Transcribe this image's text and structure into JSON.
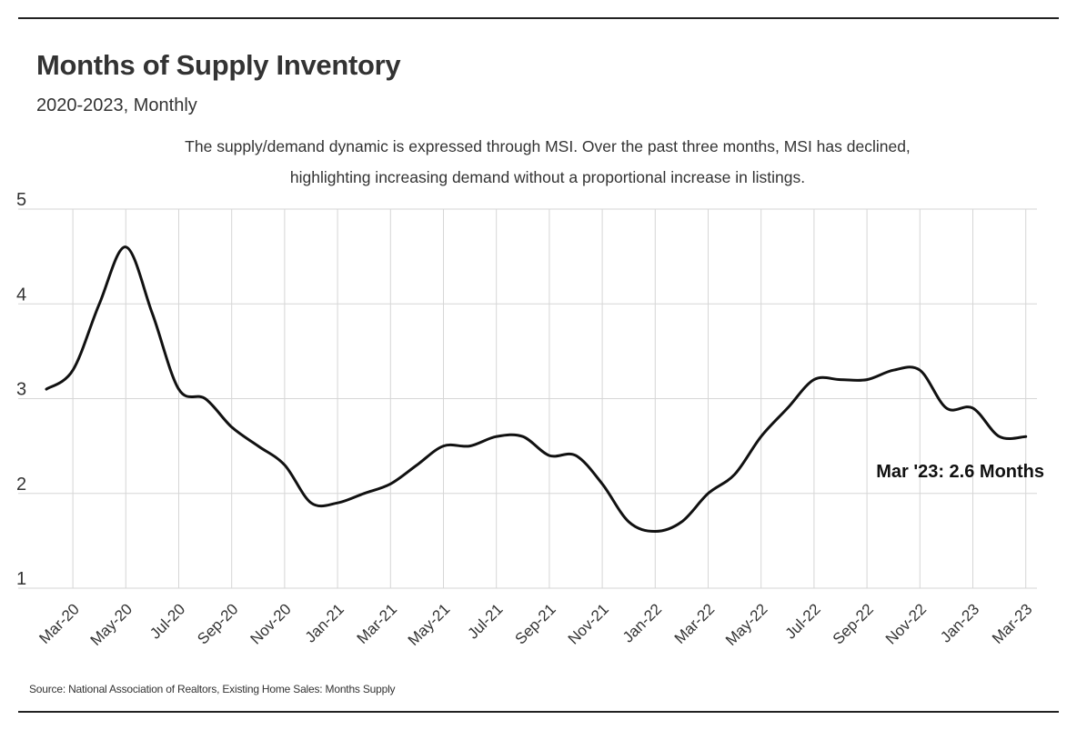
{
  "header": {
    "title": "Months of Supply Inventory",
    "subtitle": "2020-2023, Monthly",
    "annotation_line1": "The supply/demand dynamic is expressed through MSI. Over the past three months, MSI has declined,",
    "annotation_line2": "highlighting increasing demand without a proportional increase in listings."
  },
  "footer": {
    "source": "Source:  National Association of Realtors, Existing Home Sales: Months Supply"
  },
  "colors": {
    "line": "#111111",
    "grid": "#d6d6d6",
    "text": "#333333"
  },
  "chart_data": {
    "type": "line",
    "title": "Months of Supply Inventory",
    "xlabel": "",
    "ylabel": "",
    "ylim": [
      1,
      5
    ],
    "y_ticks": [
      1,
      2,
      3,
      4,
      5
    ],
    "grid": true,
    "x": [
      "Feb-20",
      "Mar-20",
      "Apr-20",
      "May-20",
      "Jun-20",
      "Jul-20",
      "Aug-20",
      "Sep-20",
      "Oct-20",
      "Nov-20",
      "Dec-20",
      "Jan-21",
      "Feb-21",
      "Mar-21",
      "Apr-21",
      "May-21",
      "Jun-21",
      "Jul-21",
      "Aug-21",
      "Sep-21",
      "Oct-21",
      "Nov-21",
      "Dec-21",
      "Jan-22",
      "Feb-22",
      "Mar-22",
      "Apr-22",
      "May-22",
      "Jun-22",
      "Jul-22",
      "Aug-22",
      "Sep-22",
      "Oct-22",
      "Nov-22",
      "Dec-22",
      "Jan-23",
      "Feb-23",
      "Mar-23"
    ],
    "x_tick_labels": [
      "Mar-20",
      "May-20",
      "Jul-20",
      "Sep-20",
      "Nov-20",
      "Jan-21",
      "Mar-21",
      "May-21",
      "Jul-21",
      "Sep-21",
      "Nov-21",
      "Jan-22",
      "Mar-22",
      "May-22",
      "Jul-22",
      "Sep-22",
      "Nov-22",
      "Jan-23",
      "Mar-23"
    ],
    "series": [
      {
        "name": "Months Supply",
        "values": [
          3.1,
          3.3,
          4.0,
          4.6,
          3.9,
          3.1,
          3.0,
          2.7,
          2.5,
          2.3,
          1.9,
          1.9,
          2.0,
          2.1,
          2.3,
          2.5,
          2.5,
          2.6,
          2.6,
          2.4,
          2.4,
          2.1,
          1.7,
          1.6,
          1.7,
          2.0,
          2.2,
          2.6,
          2.9,
          3.2,
          3.2,
          3.2,
          3.3,
          3.3,
          2.9,
          2.9,
          2.6,
          2.6
        ]
      }
    ],
    "end_label": "Mar '23: 2.6 Months"
  }
}
